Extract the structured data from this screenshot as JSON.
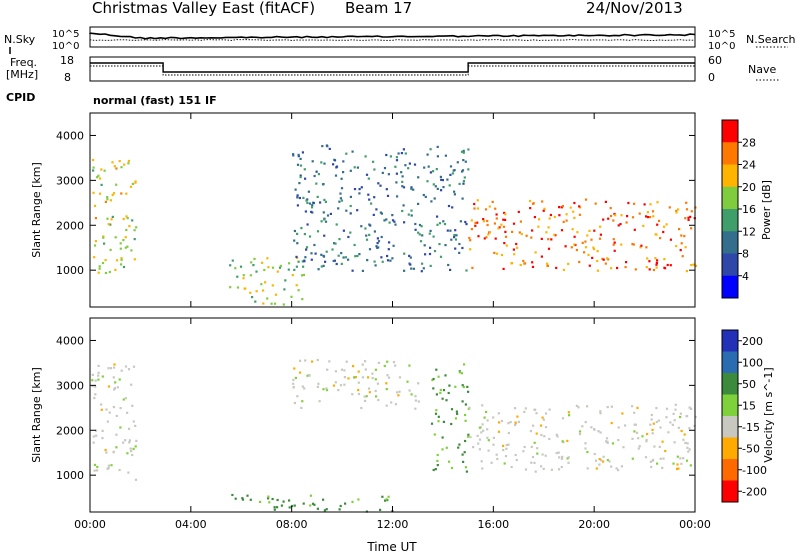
{
  "header": {
    "title": "Christmas Valley East (fitACF)",
    "beam": "Beam 17",
    "date": "24/Nov/2013"
  },
  "noise_panel": {
    "left_label": "N.Sky",
    "left_ticks": [
      "10^5",
      "10^0"
    ],
    "right_ticks": [
      "10^5",
      "10^0"
    ],
    "right_label": "N.Search"
  },
  "freq_panel": {
    "left_label_1": "Freq.",
    "left_label_2": "[MHz]",
    "left_ticks": [
      "18",
      "8"
    ],
    "right_ticks": [
      "60",
      "0"
    ],
    "right_label": "Nave"
  },
  "cpid": {
    "label": "CPID",
    "value": "normal (fast) 151 IF"
  },
  "colors": {
    "power_scale": [
      "#0000ff",
      "#2f47a8",
      "#336e8c",
      "#3f9e6a",
      "#7fcc3f",
      "#ffb400",
      "#ff7800",
      "#ff0000"
    ],
    "velocity_scale": [
      "#2330b8",
      "#2a6cb0",
      "#3c8a3c",
      "#7fd13b",
      "#c8c8c0",
      "#ffaa00",
      "#ff6a00",
      "#ff0000"
    ]
  },
  "chart_data": [
    {
      "type": "heatmap",
      "name": "power",
      "ylabel": "Slant Range [km]",
      "ylim": [
        180,
        4500
      ],
      "yticks": [
        "1000",
        "2000",
        "3000",
        "4000"
      ],
      "xlim_hours": [
        0,
        24
      ],
      "colorbar_label": "Power [dB]",
      "colorbar_ticks": [
        "4",
        "8",
        "12",
        "16",
        "20",
        "24",
        "28"
      ],
      "colorbar_range": [
        0,
        32
      ],
      "regions": [
        {
          "t0": 0.0,
          "t1": 1.8,
          "r0": 950,
          "r1": 3500,
          "value": 20
        },
        {
          "t0": 5.5,
          "t1": 8.5,
          "r0": 250,
          "r1": 1300,
          "value": 18
        },
        {
          "t0": 8.0,
          "t1": 15.0,
          "r0": 1000,
          "r1": 3800,
          "value": 10
        },
        {
          "t0": 15.0,
          "t1": 24.0,
          "r0": 1000,
          "r1": 2600,
          "value": 26
        }
      ]
    },
    {
      "type": "heatmap",
      "name": "velocity",
      "ylabel": "Slant Range [km]",
      "ylim": [
        180,
        4500
      ],
      "yticks": [
        "1000",
        "2000",
        "3000",
        "4000"
      ],
      "xlim_hours": [
        0,
        24
      ],
      "xticks": [
        "00:00",
        "04:00",
        "08:00",
        "12:00",
        "16:00",
        "20:00",
        "00:00"
      ],
      "xlabel": "Time UT",
      "colorbar_label": "Velocity [m s^-1]",
      "colorbar_ticks": [
        "200",
        "100",
        "50",
        "15",
        "-15",
        "-50",
        "-100",
        "-200"
      ],
      "regions": [
        {
          "t0": 0.0,
          "t1": 1.8,
          "r0": 900,
          "r1": 3500,
          "value": 0
        },
        {
          "t0": 5.5,
          "t1": 12.0,
          "r0": 200,
          "r1": 600,
          "value": 40
        },
        {
          "t0": 8.0,
          "t1": 13.0,
          "r0": 2500,
          "r1": 3600,
          "value": 0
        },
        {
          "t0": 13.5,
          "t1": 15.0,
          "r0": 1100,
          "r1": 3500,
          "value": 40
        },
        {
          "t0": 15.0,
          "t1": 24.0,
          "r0": 1100,
          "r1": 2600,
          "value": 0
        }
      ]
    }
  ]
}
